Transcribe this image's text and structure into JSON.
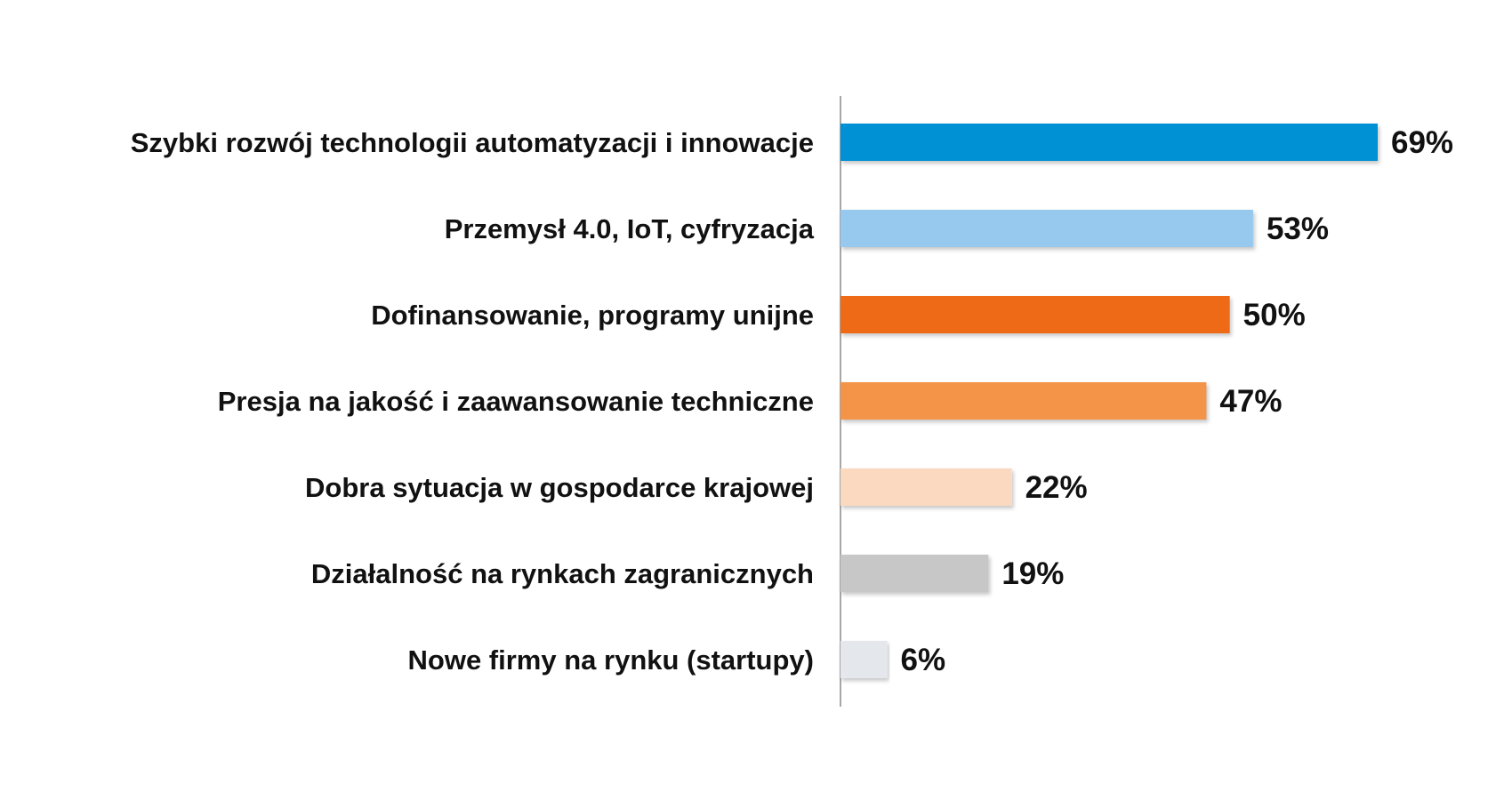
{
  "chart_data": {
    "type": "bar",
    "orientation": "horizontal",
    "categories": [
      "Szybki rozwój technologii automatyzacji i innowacje",
      "Przemysł 4.0, IoT, cyfryzacja",
      "Dofinansowanie, programy unijne",
      "Presja na jakość i zaawansowanie techniczne",
      "Dobra sytuacja w gospodarce krajowej",
      "Działalność na rynkach zagranicznych",
      "Nowe firmy na rynku (startupy)"
    ],
    "values": [
      69,
      53,
      50,
      47,
      22,
      19,
      6
    ],
    "value_labels": [
      "69%",
      "53%",
      "50%",
      "47%",
      "22%",
      "19%",
      "6%"
    ],
    "colors": [
      "#0090d4",
      "#97c9ee",
      "#ee6a12",
      "#f3944a",
      "#fbd9c1",
      "#c6c7c6",
      "#e4e8ec"
    ],
    "unit": "%",
    "xlim": [
      0,
      69
    ],
    "grid": false,
    "legend": "none",
    "title": "",
    "xlabel": "",
    "ylabel": ""
  }
}
